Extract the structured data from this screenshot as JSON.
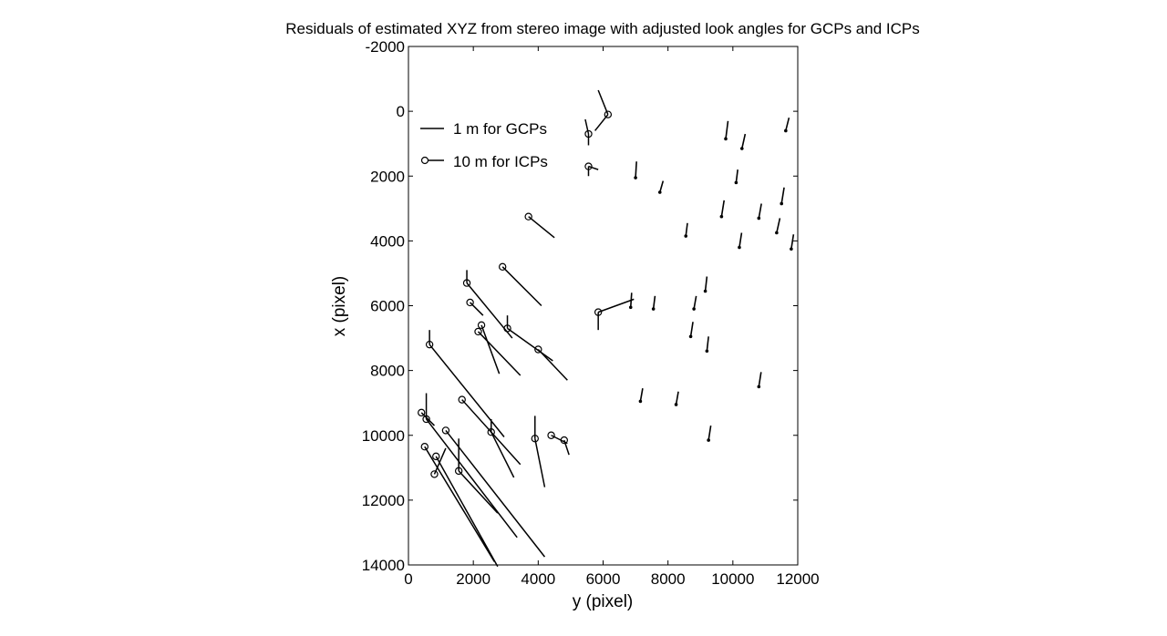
{
  "chart_data": {
    "type": "scatter",
    "title": "Residuals of estimated XYZ from stereo image with adjusted look angles for GCPs and ICPs",
    "xlabel": "y (pixel)",
    "ylabel": "x (pixel)",
    "xlim": [
      0,
      12000
    ],
    "ylim": [
      -2000,
      14000
    ],
    "y_reversed": true,
    "x_ticks": [
      "0",
      "2000",
      "4000",
      "6000",
      "8000",
      "10000",
      "12000"
    ],
    "y_ticks": [
      "-2000",
      "0",
      "2000",
      "4000",
      "6000",
      "8000",
      "10000",
      "12000",
      "14000"
    ],
    "grid": false,
    "legend_position": "top-left",
    "legend": [
      {
        "label": "1 m for GCPs",
        "marker": "none"
      },
      {
        "label": "10 m for ICPs",
        "marker": "circle"
      }
    ],
    "series": [
      {
        "name": "1 m for GCPs",
        "points": [
          {
            "x": 11630,
            "y": 600,
            "dx": 100,
            "dy": -400
          },
          {
            "x": 9780,
            "y": 850,
            "dx": 70,
            "dy": -550
          },
          {
            "x": 10280,
            "y": 1150,
            "dx": 100,
            "dy": -450
          },
          {
            "x": 7000,
            "y": 2050,
            "dx": 30,
            "dy": -500
          },
          {
            "x": 10100,
            "y": 2200,
            "dx": 50,
            "dy": -400
          },
          {
            "x": 7750,
            "y": 2500,
            "dx": 100,
            "dy": -350
          },
          {
            "x": 11500,
            "y": 2850,
            "dx": 80,
            "dy": -500
          },
          {
            "x": 9650,
            "y": 3250,
            "dx": 80,
            "dy": -500
          },
          {
            "x": 10800,
            "y": 3300,
            "dx": 80,
            "dy": -450
          },
          {
            "x": 11350,
            "y": 3750,
            "dx": 100,
            "dy": -450
          },
          {
            "x": 8550,
            "y": 3850,
            "dx": 50,
            "dy": -400
          },
          {
            "x": 10200,
            "y": 4200,
            "dx": 70,
            "dy": -450
          },
          {
            "x": 11800,
            "y": 4250,
            "dx": 70,
            "dy": -450
          },
          {
            "x": 9150,
            "y": 5550,
            "dx": 50,
            "dy": -450
          },
          {
            "x": 6850,
            "y": 6050,
            "dx": 30,
            "dy": -450
          },
          {
            "x": 7550,
            "y": 6100,
            "dx": 50,
            "dy": -400
          },
          {
            "x": 8800,
            "y": 6100,
            "dx": 70,
            "dy": -400
          },
          {
            "x": 8700,
            "y": 6950,
            "dx": 70,
            "dy": -450
          },
          {
            "x": 9200,
            "y": 7400,
            "dx": 50,
            "dy": -450
          },
          {
            "x": 10800,
            "y": 8500,
            "dx": 70,
            "dy": -450
          },
          {
            "x": 7150,
            "y": 8950,
            "dx": 70,
            "dy": -400
          },
          {
            "x": 8250,
            "y": 9050,
            "dx": 70,
            "dy": -400
          },
          {
            "x": 9250,
            "y": 10150,
            "dx": 70,
            "dy": -450
          }
        ]
      },
      {
        "name": "10 m for ICPs",
        "points": [
          {
            "x": 6150,
            "y": 100,
            "dx": -300,
            "dy": -750,
            "dx2": -400,
            "dy2": 500
          },
          {
            "x": 5550,
            "y": 700,
            "dx": -100,
            "dy": -450,
            "dx2": 0,
            "dy2": 350
          },
          {
            "x": 5550,
            "y": 1700,
            "dx": 300,
            "dy": 100,
            "dx2": 0,
            "dy2": 300
          },
          {
            "x": 3700,
            "y": 3250,
            "dx": 800,
            "dy": 650
          },
          {
            "x": 2900,
            "y": 4800,
            "dx": 1200,
            "dy": 1200
          },
          {
            "x": 1800,
            "y": 5300,
            "dx": 1400,
            "dy": 1700,
            "dx2": 0,
            "dy2": -400
          },
          {
            "x": 1900,
            "y": 5900,
            "dx": 400,
            "dy": 400
          },
          {
            "x": 5850,
            "y": 6200,
            "dx": 1100,
            "dy": -400,
            "dx2": 0,
            "dy2": 550
          },
          {
            "x": 3050,
            "y": 6700,
            "dx": 1400,
            "dy": 1000,
            "dx2": 0,
            "dy2": -400
          },
          {
            "x": 2150,
            "y": 6800,
            "dx": 1300,
            "dy": 1350
          },
          {
            "x": 2250,
            "y": 6600,
            "dx": 550,
            "dy": 1500
          },
          {
            "x": 650,
            "y": 7200,
            "dx": 2300,
            "dy": 2850,
            "dx2": 0,
            "dy2": -450
          },
          {
            "x": 4000,
            "y": 7350,
            "dx": 900,
            "dy": 950
          },
          {
            "x": 1650,
            "y": 8900,
            "dx": 1800,
            "dy": 2000
          },
          {
            "x": 400,
            "y": 9300,
            "dx": 400,
            "dy": 400
          },
          {
            "x": 550,
            "y": 9500,
            "dx": 2800,
            "dy": 3650,
            "dx2": 0,
            "dy2": -800
          },
          {
            "x": 2550,
            "y": 9900,
            "dx": 700,
            "dy": 1400,
            "dx2": 0,
            "dy2": -400
          },
          {
            "x": 3900,
            "y": 10100,
            "dx": 300,
            "dy": 1500,
            "dx2": 0,
            "dy2": -700
          },
          {
            "x": 4400,
            "y": 10000,
            "dx": 500,
            "dy": 250
          },
          {
            "x": 4800,
            "y": 10150,
            "dx": 150,
            "dy": 450
          },
          {
            "x": 1150,
            "y": 9850,
            "dx": 3050,
            "dy": 3900
          },
          {
            "x": 500,
            "y": 10350,
            "dx": 2150,
            "dy": 3550
          },
          {
            "x": 850,
            "y": 10650,
            "dx": 1900,
            "dy": 3400
          },
          {
            "x": 1550,
            "y": 11100,
            "dx": 1200,
            "dy": 1300,
            "dx2": 0,
            "dy2": -1000
          },
          {
            "x": 800,
            "y": 11200,
            "dx": 350,
            "dy": -800
          }
        ]
      }
    ]
  }
}
